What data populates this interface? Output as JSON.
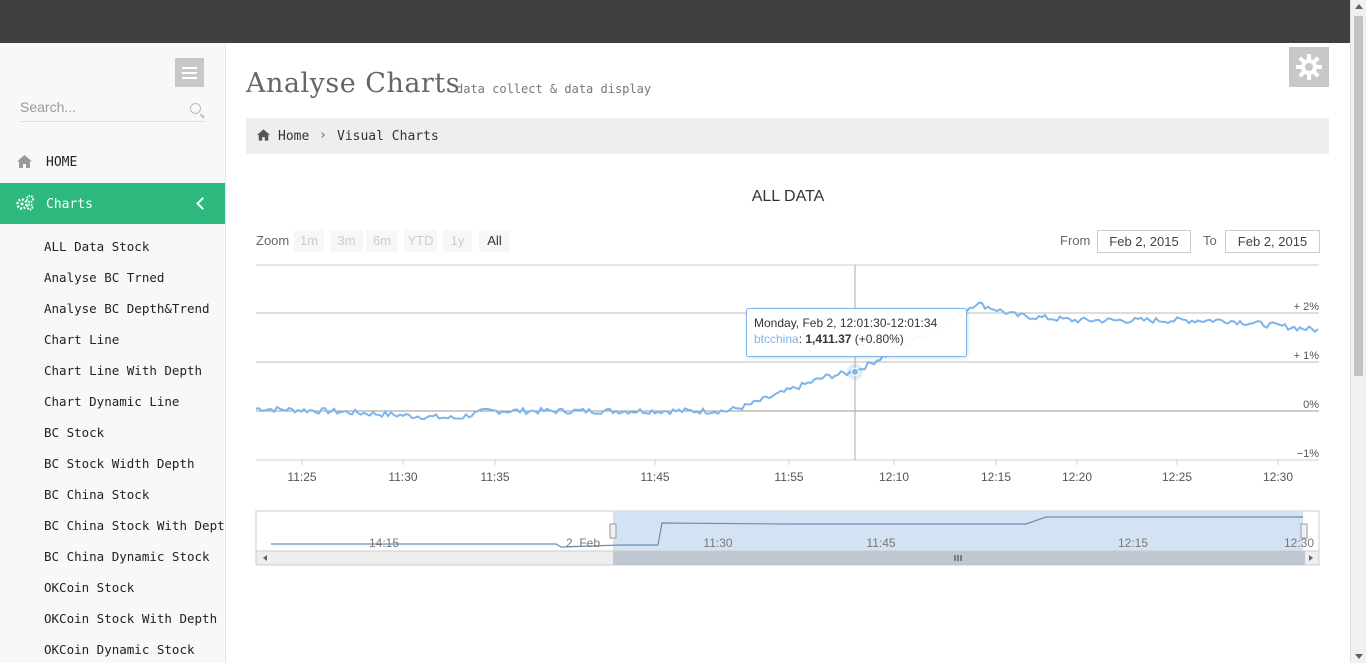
{
  "colors": {
    "accent": "#2db87d",
    "topbar": "#404040",
    "series": "#7cb5ec"
  },
  "sidebar": {
    "search_placeholder": "Search...",
    "home_label": "HOME",
    "charts_label": "Charts",
    "items": [
      {
        "label": "ALL Data Stock"
      },
      {
        "label": "Analyse BC Trned"
      },
      {
        "label": "Analyse BC Depth&Trend"
      },
      {
        "label": "Chart Line"
      },
      {
        "label": "Chart Line With Depth"
      },
      {
        "label": "Chart Dynamic Line"
      },
      {
        "label": "BC Stock"
      },
      {
        "label": "BC Stock Width Depth"
      },
      {
        "label": "BC China Stock"
      },
      {
        "label": "BC China Stock With Depth"
      },
      {
        "label": "BC China Dynamic Stock"
      },
      {
        "label": "OKCoin Stock"
      },
      {
        "label": "OKCoin Stock With Depth"
      },
      {
        "label": "OKCoin Dynamic Stock"
      }
    ]
  },
  "header": {
    "title": "Analyse Charts",
    "subtitle": "data collect & data display"
  },
  "breadcrumb": {
    "home": "Home",
    "separator": "›",
    "current": "Visual Charts"
  },
  "chart": {
    "zoom_label": "Zoom",
    "zoom_buttons": [
      "1m",
      "3m",
      "6m",
      "YTD",
      "1y",
      "All"
    ],
    "active_zoom": "All",
    "from_label": "From",
    "from_value": "Feb 2, 2015",
    "to_label": "To",
    "to_value": "Feb 2, 2015",
    "tooltip": {
      "header": "Monday, Feb 2, 12:01:30-12:01:34",
      "series": "btcchina",
      "value": "1,411.37",
      "change": "(+0.80%)"
    }
  },
  "chart_data": {
    "type": "line",
    "title": "ALL DATA",
    "series": [
      {
        "name": "btcchina"
      }
    ],
    "x_tick_labels": [
      "11:25",
      "11:30",
      "11:35",
      "11:45",
      "11:55",
      "12:10",
      "12:15",
      "12:20",
      "12:25",
      "12:30"
    ],
    "y_tick_labels": [
      "+ 2%",
      "+ 1%",
      "0%",
      "−1%"
    ],
    "ylim": [
      -1,
      2
    ],
    "x": [
      "11:25",
      "11:30",
      "11:35",
      "11:45",
      "11:55",
      "12:01",
      "12:10",
      "12:15",
      "12:20",
      "12:25",
      "12:30"
    ],
    "values": [
      0.0,
      -0.05,
      -0.15,
      -0.05,
      0.1,
      0.8,
      2.2,
      1.8,
      1.85,
      1.8,
      1.6
    ],
    "navigator_labels": [
      "14:15",
      "2. Feb",
      "11:30",
      "11:45",
      "12:15",
      "12:30"
    ],
    "legend": "none",
    "grid": "horizontal"
  }
}
